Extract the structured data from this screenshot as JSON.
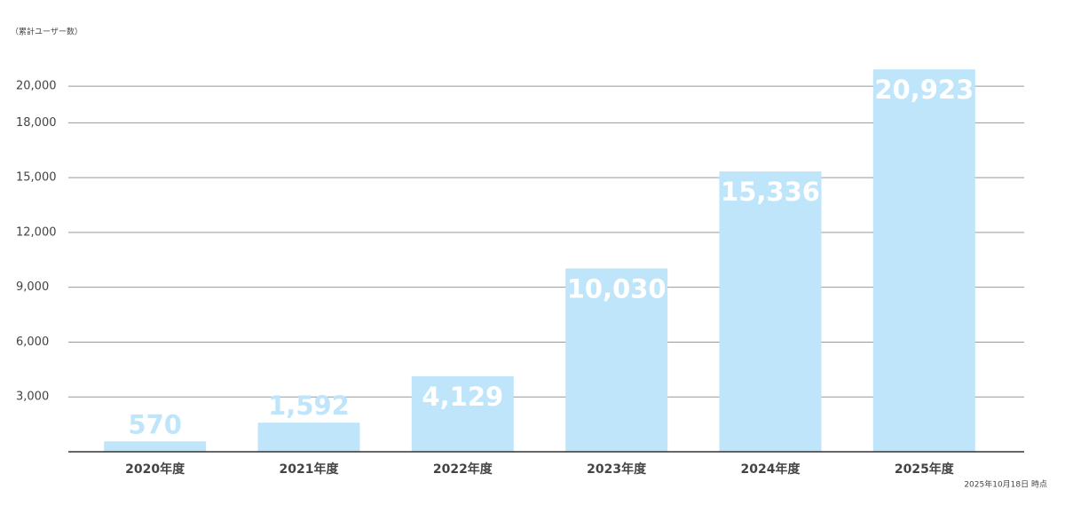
{
  "chart_data": {
    "type": "bar",
    "title": "（累計ユーザー数）",
    "note": "2025年10月18日 時点",
    "categories": [
      "2020年度",
      "2021年度",
      "2022年度",
      "2023年度",
      "2024年度",
      "2025年度"
    ],
    "values": [
      570,
      1592,
      4129,
      10030,
      15336,
      20923
    ],
    "value_labels": [
      "570",
      "1,592",
      "4,129",
      "10,030",
      "15,336",
      "20,923"
    ],
    "color": "#bfe5fa",
    "ylim": [
      0,
      22000
    ],
    "yticks": [
      {
        "value": 3000,
        "label": "3,000"
      },
      {
        "value": 6000,
        "label": "6,000"
      },
      {
        "value": 9000,
        "label": "9,000"
      },
      {
        "value": 12000,
        "label": "12,000"
      },
      {
        "value": 15000,
        "label": "15,000"
      },
      {
        "value": 18000,
        "label": "18,000"
      },
      {
        "value": 20000,
        "label": "20,000"
      }
    ],
    "grid": true
  }
}
